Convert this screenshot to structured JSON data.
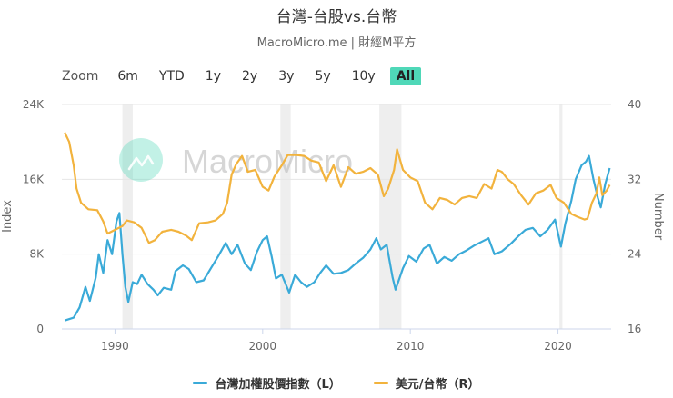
{
  "header": {
    "title": "台灣-台股vs.台幣",
    "subtitle": "MacroMicro.me | 財經M平方"
  },
  "zoom": {
    "label": "Zoom",
    "buttons": [
      "6m",
      "YTD",
      "1y",
      "2y",
      "3y",
      "5y",
      "10y",
      "All"
    ],
    "active": "All"
  },
  "watermark": "MacroMicro",
  "colors": {
    "taiex": "#3aaad8",
    "usdtwd": "#f2b33d",
    "active_button": "#4fd8b8",
    "recession": "#eeeeee"
  },
  "legend": {
    "taiex": "台灣加權股價指數（L）",
    "usdtwd": "美元/台幣（R）"
  },
  "chart_data": {
    "type": "line",
    "title": "台灣-台股vs.台幣",
    "subtitle": "MacroMicro.me | 財經M平方",
    "xlabel": "",
    "ylabel_left": "Index",
    "ylabel_right": "Number",
    "x_ticks": [
      "1990",
      "2000",
      "2010",
      "2020"
    ],
    "y_left_ticks": [
      "0",
      "8K",
      "16K",
      "24K"
    ],
    "y_right_ticks": [
      "16",
      "24",
      "32",
      "40"
    ],
    "ylim_left": [
      0,
      24000
    ],
    "ylim_right": [
      16,
      40
    ],
    "xlim": [
      1986.4,
      2023.6
    ],
    "grid": true,
    "legend_position": "bottom",
    "recession_bands": [
      [
        1990.5,
        1991.2
      ],
      [
        2001.2,
        2001.9
      ],
      [
        2007.9,
        2009.4
      ],
      [
        2020.1,
        2020.3
      ]
    ],
    "series": [
      {
        "name": "台灣加權股價指數（L）",
        "axis": "left",
        "points": [
          [
            1986.6,
            900
          ],
          [
            1987.2,
            1200
          ],
          [
            1987.6,
            2300
          ],
          [
            1988.0,
            4500
          ],
          [
            1988.3,
            3000
          ],
          [
            1988.7,
            5500
          ],
          [
            1988.9,
            8000
          ],
          [
            1989.2,
            6000
          ],
          [
            1989.5,
            9500
          ],
          [
            1989.8,
            8000
          ],
          [
            1990.1,
            11500
          ],
          [
            1990.3,
            12400
          ],
          [
            1990.5,
            8000
          ],
          [
            1990.7,
            4500
          ],
          [
            1990.9,
            2900
          ],
          [
            1991.2,
            5000
          ],
          [
            1991.5,
            4800
          ],
          [
            1991.8,
            5800
          ],
          [
            1992.2,
            4800
          ],
          [
            1992.6,
            4200
          ],
          [
            1992.9,
            3600
          ],
          [
            1993.3,
            4400
          ],
          [
            1993.8,
            4200
          ],
          [
            1994.1,
            6200
          ],
          [
            1994.6,
            6800
          ],
          [
            1995.0,
            6400
          ],
          [
            1995.5,
            5000
          ],
          [
            1996.0,
            5200
          ],
          [
            1996.5,
            6500
          ],
          [
            1997.0,
            7800
          ],
          [
            1997.5,
            9200
          ],
          [
            1997.9,
            8000
          ],
          [
            1998.3,
            9000
          ],
          [
            1998.8,
            7000
          ],
          [
            1999.2,
            6300
          ],
          [
            1999.6,
            8200
          ],
          [
            2000.0,
            9500
          ],
          [
            2000.3,
            9900
          ],
          [
            2000.6,
            7800
          ],
          [
            2000.9,
            5400
          ],
          [
            2001.3,
            5800
          ],
          [
            2001.8,
            3900
          ],
          [
            2002.2,
            5800
          ],
          [
            2002.6,
            5000
          ],
          [
            2003.0,
            4500
          ],
          [
            2003.5,
            5000
          ],
          [
            2003.9,
            6000
          ],
          [
            2004.3,
            6800
          ],
          [
            2004.8,
            5900
          ],
          [
            2005.3,
            6000
          ],
          [
            2005.8,
            6300
          ],
          [
            2006.3,
            7000
          ],
          [
            2006.8,
            7600
          ],
          [
            2007.3,
            8500
          ],
          [
            2007.7,
            9700
          ],
          [
            2008.0,
            8500
          ],
          [
            2008.4,
            9000
          ],
          [
            2008.8,
            5500
          ],
          [
            2009.0,
            4200
          ],
          [
            2009.5,
            6500
          ],
          [
            2009.9,
            7800
          ],
          [
            2010.4,
            7200
          ],
          [
            2010.9,
            8600
          ],
          [
            2011.3,
            9000
          ],
          [
            2011.8,
            7000
          ],
          [
            2012.3,
            7700
          ],
          [
            2012.8,
            7300
          ],
          [
            2013.3,
            8000
          ],
          [
            2013.8,
            8400
          ],
          [
            2014.3,
            8900
          ],
          [
            2014.8,
            9300
          ],
          [
            2015.3,
            9700
          ],
          [
            2015.7,
            8000
          ],
          [
            2016.2,
            8300
          ],
          [
            2016.8,
            9100
          ],
          [
            2017.3,
            9900
          ],
          [
            2017.8,
            10600
          ],
          [
            2018.3,
            10800
          ],
          [
            2018.8,
            9900
          ],
          [
            2019.3,
            10600
          ],
          [
            2019.8,
            11700
          ],
          [
            2020.2,
            8800
          ],
          [
            2020.5,
            11300
          ],
          [
            2020.9,
            13700
          ],
          [
            2021.2,
            16000
          ],
          [
            2021.6,
            17500
          ],
          [
            2021.9,
            17900
          ],
          [
            2022.1,
            18500
          ],
          [
            2022.4,
            16000
          ],
          [
            2022.7,
            14000
          ],
          [
            2022.9,
            13000
          ],
          [
            2023.2,
            15500
          ],
          [
            2023.5,
            17200
          ]
        ]
      },
      {
        "name": "美元/台幣（R）",
        "axis": "right",
        "points": [
          [
            1986.6,
            37
          ],
          [
            1986.9,
            36
          ],
          [
            1987.2,
            33.5
          ],
          [
            1987.4,
            31
          ],
          [
            1987.7,
            29.5
          ],
          [
            1988.2,
            28.8
          ],
          [
            1988.8,
            28.7
          ],
          [
            1989.2,
            27.5
          ],
          [
            1989.5,
            26.2
          ],
          [
            1990.0,
            26.6
          ],
          [
            1990.5,
            27.0
          ],
          [
            1990.8,
            27.6
          ],
          [
            1991.3,
            27.4
          ],
          [
            1991.8,
            26.8
          ],
          [
            1992.3,
            25.2
          ],
          [
            1992.7,
            25.5
          ],
          [
            1993.2,
            26.4
          ],
          [
            1993.8,
            26.6
          ],
          [
            1994.3,
            26.4
          ],
          [
            1994.8,
            26.0
          ],
          [
            1995.2,
            25.5
          ],
          [
            1995.7,
            27.3
          ],
          [
            1996.3,
            27.4
          ],
          [
            1996.8,
            27.6
          ],
          [
            1997.3,
            28.3
          ],
          [
            1997.6,
            29.5
          ],
          [
            1997.9,
            32.5
          ],
          [
            1998.2,
            33.6
          ],
          [
            1998.6,
            34.5
          ],
          [
            1999.0,
            32.8
          ],
          [
            1999.5,
            33.0
          ],
          [
            2000.0,
            31.2
          ],
          [
            2000.4,
            30.8
          ],
          [
            2000.8,
            32.3
          ],
          [
            2001.3,
            33.5
          ],
          [
            2001.7,
            34.6
          ],
          [
            2002.3,
            34.6
          ],
          [
            2002.8,
            34.5
          ],
          [
            2003.3,
            34.0
          ],
          [
            2003.8,
            33.8
          ],
          [
            2004.3,
            31.8
          ],
          [
            2004.8,
            33.5
          ],
          [
            2005.3,
            31.2
          ],
          [
            2005.8,
            33.3
          ],
          [
            2006.3,
            32.6
          ],
          [
            2006.8,
            32.8
          ],
          [
            2007.3,
            33.2
          ],
          [
            2007.8,
            32.5
          ],
          [
            2008.2,
            30.2
          ],
          [
            2008.5,
            31.0
          ],
          [
            2008.9,
            33.0
          ],
          [
            2009.1,
            35.2
          ],
          [
            2009.5,
            33.0
          ],
          [
            2010.0,
            32.2
          ],
          [
            2010.5,
            31.8
          ],
          [
            2011.0,
            29.5
          ],
          [
            2011.5,
            28.8
          ],
          [
            2012.0,
            30.0
          ],
          [
            2012.5,
            29.8
          ],
          [
            2013.0,
            29.3
          ],
          [
            2013.5,
            30.0
          ],
          [
            2014.0,
            30.2
          ],
          [
            2014.5,
            30.0
          ],
          [
            2015.0,
            31.5
          ],
          [
            2015.5,
            31.0
          ],
          [
            2015.9,
            33.0
          ],
          [
            2016.2,
            32.8
          ],
          [
            2016.6,
            32.0
          ],
          [
            2017.0,
            31.5
          ],
          [
            2017.5,
            30.3
          ],
          [
            2018.0,
            29.3
          ],
          [
            2018.5,
            30.5
          ],
          [
            2019.0,
            30.8
          ],
          [
            2019.5,
            31.4
          ],
          [
            2019.9,
            30.0
          ],
          [
            2020.4,
            29.5
          ],
          [
            2020.9,
            28.3
          ],
          [
            2021.3,
            28.0
          ],
          [
            2021.8,
            27.7
          ],
          [
            2022.0,
            27.8
          ],
          [
            2022.3,
            29.5
          ],
          [
            2022.6,
            30.5
          ],
          [
            2022.8,
            32.2
          ],
          [
            2023.0,
            30.3
          ],
          [
            2023.3,
            30.8
          ],
          [
            2023.5,
            31.4
          ]
        ]
      }
    ]
  }
}
